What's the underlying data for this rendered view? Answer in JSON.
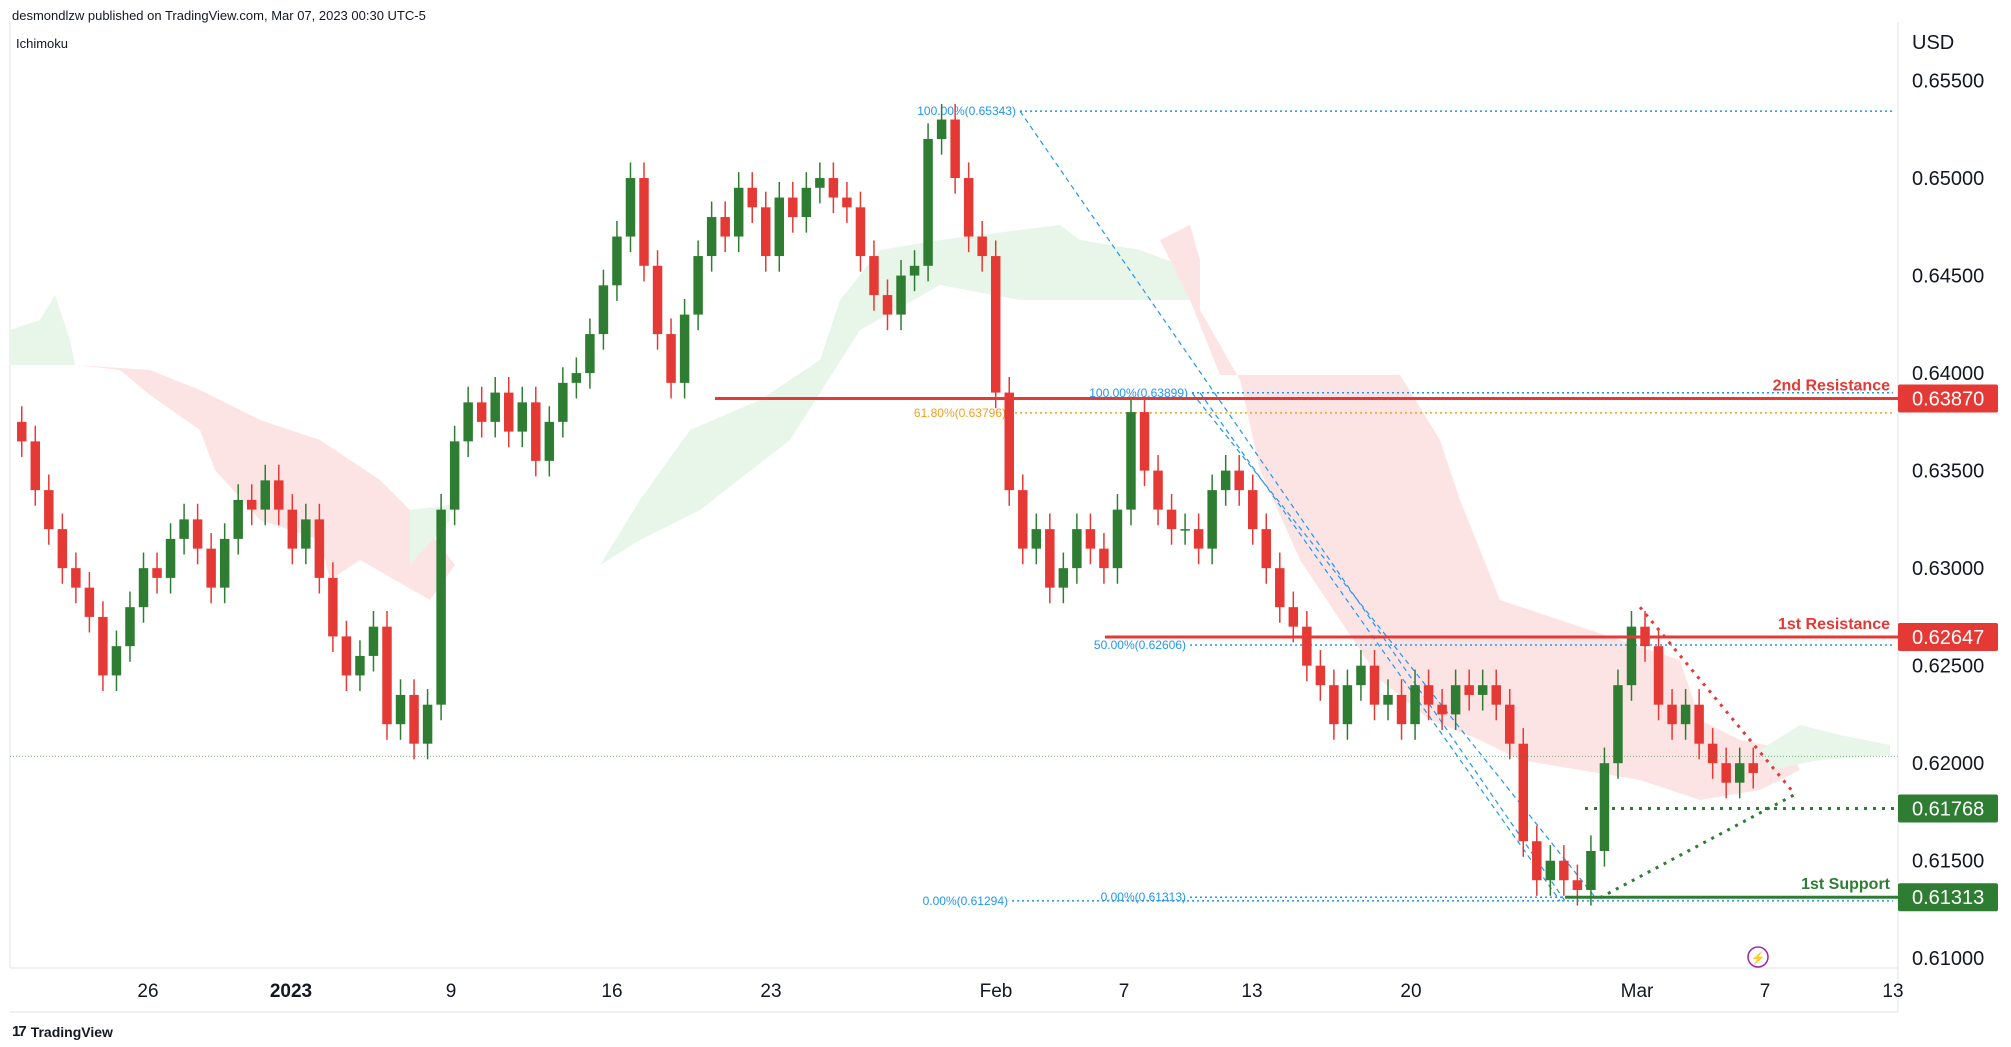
{
  "header": {
    "publisher_line": "desmondlzw published on TradingView.com, Mar 07, 2023 00:30 UTC-5"
  },
  "indicator_label": "Ichimoku",
  "currency": "USD",
  "footer": {
    "logo_text": "TradingView",
    "logo_mark": "17"
  },
  "colors": {
    "bull": "#2e7d32",
    "bear": "#e53935",
    "resistance": "#e53935",
    "support": "#2e7d32",
    "fib_blue": "#2196f3",
    "fib_orange": "#f0a020",
    "cloud_green": "#e8f5e9",
    "cloud_red": "#fde4e4"
  },
  "chart_data": {
    "type": "candlestick",
    "symbol_quote": "USD",
    "ylim": [
      0.6095,
      0.658
    ],
    "y_ticks": [
      "0.65500",
      "0.65000",
      "0.64500",
      "0.64000",
      "0.63500",
      "0.63000",
      "0.62500",
      "0.62000",
      "0.61500",
      "0.61000"
    ],
    "x_ticks": [
      "26",
      "2023",
      "9",
      "16",
      "23",
      "Feb",
      "7",
      "13",
      "20",
      "Mar",
      "7",
      "13"
    ],
    "levels": [
      {
        "name": "2nd Resistance",
        "value_label": "0.63870",
        "value": 0.6387,
        "kind": "resistance"
      },
      {
        "name": "1st Resistance",
        "value_label": "0.62647",
        "value": 0.62647,
        "kind": "resistance"
      },
      {
        "name": "",
        "value_label": "0.61768",
        "value": 0.61768,
        "kind": "support-dotted"
      },
      {
        "name": "1st Support",
        "value_label": "0.61313",
        "value": 0.61313,
        "kind": "support"
      }
    ],
    "fib_labels": [
      {
        "text": "100.00%(0.65343)",
        "value": 0.65343,
        "color": "blue"
      },
      {
        "text": "100.00%(0.63899)",
        "value": 0.63899,
        "color": "blue"
      },
      {
        "text": "61.80%(0.63796)",
        "value": 0.63796,
        "color": "orange"
      },
      {
        "text": "50.00%(0.62606)",
        "value": 0.62606,
        "color": "blue"
      },
      {
        "text": "0.00%(0.61294)",
        "value": 0.61294,
        "color": "blue"
      },
      {
        "text": "0.00%(0.61313)",
        "value": 0.61313,
        "color": "blue"
      }
    ],
    "candles_close": [
      0.6365,
      0.634,
      0.632,
      0.63,
      0.629,
      0.6275,
      0.6245,
      0.626,
      0.628,
      0.63,
      0.6295,
      0.6315,
      0.6325,
      0.631,
      0.629,
      0.6315,
      0.6335,
      0.633,
      0.6345,
      0.633,
      0.631,
      0.6325,
      0.6295,
      0.6265,
      0.6245,
      0.6255,
      0.627,
      0.622,
      0.6235,
      0.621,
      0.623,
      0.633,
      0.6365,
      0.6385,
      0.6375,
      0.639,
      0.637,
      0.6385,
      0.6355,
      0.6375,
      0.6395,
      0.64,
      0.642,
      0.6445,
      0.647,
      0.65,
      0.6455,
      0.642,
      0.6395,
      0.643,
      0.646,
      0.648,
      0.647,
      0.6495,
      0.6485,
      0.646,
      0.649,
      0.648,
      0.6495,
      0.65,
      0.649,
      0.6485,
      0.646,
      0.644,
      0.643,
      0.645,
      0.6455,
      0.652,
      0.653,
      0.65,
      0.647,
      0.646,
      0.639,
      0.634,
      0.631,
      0.632,
      0.629,
      0.63,
      0.632,
      0.631,
      0.63,
      0.633,
      0.638,
      0.635,
      0.633,
      0.632,
      0.632,
      0.631,
      0.634,
      0.635,
      0.634,
      0.632,
      0.63,
      0.628,
      0.627,
      0.625,
      0.624,
      0.622,
      0.624,
      0.625,
      0.623,
      0.6235,
      0.622,
      0.624,
      0.623,
      0.6225,
      0.624,
      0.6235,
      0.624,
      0.623,
      0.621,
      0.616,
      0.614,
      0.615,
      0.614,
      0.6135,
      0.6155,
      0.62,
      0.624,
      0.627,
      0.626,
      0.623,
      0.622,
      0.623,
      0.621,
      0.62,
      0.619,
      0.62,
      0.6195
    ]
  },
  "misc": {
    "flash_icon_label": "⚡"
  }
}
